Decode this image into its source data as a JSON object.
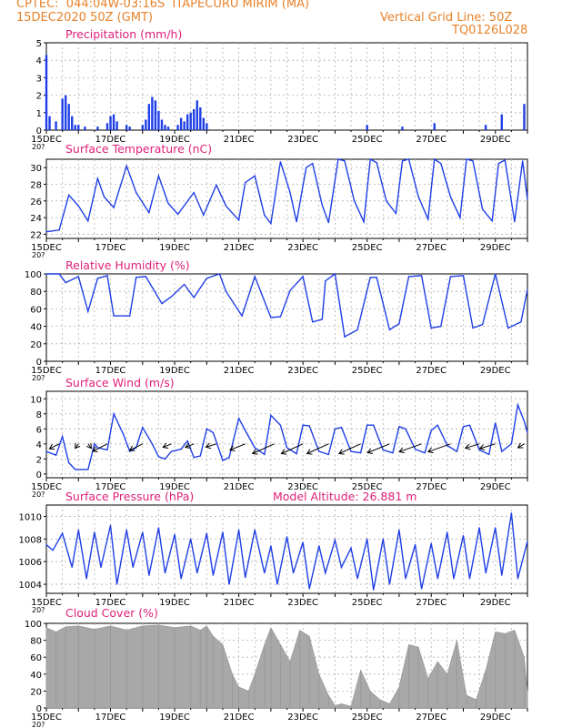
{
  "header": {
    "line1": "CPTEC:  044:04W-03:16S  ITAPECURU MIRIM (MA)",
    "line2": "15DEC2020 50Z (GMT)",
    "grid_note": "Vertical Grid Line: 50Z",
    "code": "TQ0126L028"
  },
  "x_axis": {
    "day_ticks": [
      "15DEC",
      "17DEC",
      "19DEC",
      "21DEC",
      "23DEC",
      "25DEC",
      "27DEC",
      "29DEC"
    ],
    "year_fragment": "20?"
  },
  "colors": {
    "line": "#1f3fe6",
    "bar": "#1f3fe6",
    "cloud": "#a8a8a8",
    "title": "#e0207a",
    "header": "#e8822a",
    "grid": "#b0b0b0"
  },
  "chart_data": [
    {
      "type": "bar",
      "title": "Precipitation (mm/h)",
      "x_unit": "day offset from 15DEC 00Z",
      "ylim": [
        0,
        5
      ],
      "yticks": [
        "0",
        "1",
        "2",
        "3",
        "4",
        "5"
      ],
      "x": [
        0.0,
        0.1,
        0.3,
        0.5,
        0.6,
        0.7,
        0.8,
        0.9,
        1.0,
        1.2,
        1.6,
        1.9,
        2.0,
        2.1,
        2.2,
        2.5,
        2.6,
        3.0,
        3.1,
        3.2,
        3.3,
        3.4,
        3.5,
        3.6,
        3.7,
        3.8,
        4.1,
        4.2,
        4.3,
        4.4,
        4.5,
        4.6,
        4.7,
        4.8,
        4.9,
        5.0,
        10.0,
        11.1,
        12.1,
        13.7,
        14.2,
        14.9
      ],
      "values": [
        4.3,
        0.8,
        0.5,
        1.8,
        2.0,
        1.5,
        0.8,
        0.3,
        0.3,
        0.2,
        0.2,
        0.4,
        0.8,
        0.9,
        0.5,
        0.3,
        0.2,
        0.3,
        0.6,
        1.5,
        1.9,
        1.7,
        1.1,
        0.6,
        0.3,
        0.2,
        0.3,
        0.7,
        0.5,
        0.9,
        1.0,
        1.2,
        1.7,
        1.3,
        0.7,
        0.4,
        0.3,
        0.2,
        0.4,
        0.3,
        0.9,
        1.5
      ]
    },
    {
      "type": "line",
      "title": "Surface Temperature (nC)",
      "ylim": [
        21.5,
        31
      ],
      "yticks": [
        "22",
        "24",
        "26",
        "28",
        "30"
      ],
      "x": [
        0.0,
        0.4,
        0.7,
        1.0,
        1.3,
        1.6,
        1.8,
        2.1,
        2.5,
        2.8,
        3.2,
        3.5,
        3.8,
        4.1,
        4.6,
        4.9,
        5.3,
        5.6,
        6.0,
        6.2,
        6.5,
        6.8,
        7.0,
        7.3,
        7.6,
        7.8,
        8.1,
        8.3,
        8.6,
        8.8,
        9.1,
        9.3,
        9.6,
        9.9,
        10.1,
        10.3,
        10.6,
        10.9,
        11.1,
        11.3,
        11.6,
        11.9,
        12.1,
        12.3,
        12.6,
        12.9,
        13.1,
        13.3,
        13.6,
        13.9,
        14.1,
        14.3,
        14.6,
        14.85,
        15.0
      ],
      "values": [
        22.3,
        22.5,
        26.7,
        25.4,
        23.6,
        28.7,
        26.5,
        25.2,
        30.2,
        27.0,
        24.6,
        29.0,
        25.7,
        24.4,
        27.0,
        24.3,
        27.9,
        25.4,
        23.7,
        28.2,
        29.0,
        24.3,
        23.3,
        30.7,
        27.0,
        23.5,
        30.0,
        30.5,
        25.5,
        23.4,
        31.0,
        30.8,
        26.0,
        23.5,
        31.0,
        30.6,
        26.0,
        24.5,
        30.8,
        31.0,
        26.5,
        23.8,
        31.0,
        30.5,
        26.5,
        24.0,
        31.0,
        30.8,
        25.0,
        23.6,
        30.5,
        30.9,
        23.5,
        30.8,
        26.2
      ]
    },
    {
      "type": "line",
      "title": "Relative Humidity (%)",
      "ylim": [
        0,
        100
      ],
      "yticks": [
        "0",
        "20",
        "40",
        "60",
        "80",
        "100"
      ],
      "x": [
        0.0,
        0.4,
        0.6,
        1.0,
        1.3,
        1.6,
        1.9,
        2.1,
        2.6,
        2.8,
        3.1,
        3.6,
        3.9,
        4.3,
        4.6,
        5.0,
        5.4,
        5.6,
        6.1,
        6.5,
        7.0,
        7.3,
        7.6,
        8.0,
        8.3,
        8.6,
        8.7,
        9.0,
        9.3,
        9.7,
        10.1,
        10.3,
        10.7,
        11.0,
        11.3,
        11.7,
        12.0,
        12.3,
        12.6,
        13.0,
        13.3,
        13.6,
        14.0,
        14.4,
        14.8,
        15.0
      ],
      "values": [
        100,
        100,
        90,
        97,
        57,
        95,
        98,
        52,
        52,
        96,
        97,
        66,
        74,
        88,
        73,
        95,
        100,
        80,
        52,
        97,
        50,
        51,
        81,
        97,
        45,
        48,
        92,
        100,
        28,
        36,
        96,
        96,
        36,
        43,
        97,
        98,
        38,
        40,
        97,
        98,
        38,
        42,
        100,
        38,
        45,
        82
      ]
    },
    {
      "type": "line",
      "title": "Surface Wind (m/s)",
      "ylim": [
        -0.5,
        11
      ],
      "yticks": [
        "0",
        "2",
        "4",
        "6",
        "8",
        "10"
      ],
      "x": [
        0.0,
        0.3,
        0.5,
        0.7,
        0.9,
        1.1,
        1.3,
        1.5,
        1.6,
        1.9,
        2.1,
        2.4,
        2.6,
        2.8,
        3.0,
        3.3,
        3.5,
        3.7,
        3.9,
        4.2,
        4.4,
        4.6,
        4.8,
        5.0,
        5.2,
        5.5,
        5.7,
        6.0,
        6.2,
        6.5,
        6.8,
        7.0,
        7.3,
        7.5,
        7.8,
        8.0,
        8.2,
        8.5,
        8.8,
        9.0,
        9.2,
        9.5,
        9.8,
        10.0,
        10.2,
        10.5,
        10.8,
        11.0,
        11.2,
        11.5,
        11.8,
        12.0,
        12.2,
        12.5,
        12.8,
        13.0,
        13.2,
        13.5,
        13.8,
        14.0,
        14.2,
        14.5,
        14.7,
        14.9,
        15.0
      ],
      "values": [
        3.0,
        2.5,
        5.0,
        1.5,
        0.6,
        0.6,
        0.6,
        4.0,
        3.5,
        3.2,
        8.0,
        5.3,
        3.0,
        3.5,
        6.2,
        4.0,
        2.3,
        2.0,
        3.0,
        3.3,
        4.4,
        2.2,
        2.4,
        6.0,
        5.5,
        1.8,
        2.2,
        7.4,
        5.8,
        3.5,
        2.6,
        7.8,
        6.5,
        3.5,
        2.7,
        6.5,
        6.4,
        3.0,
        2.6,
        6.0,
        6.2,
        3.0,
        2.8,
        6.5,
        6.5,
        3.2,
        2.8,
        6.3,
        6.0,
        3.3,
        2.8,
        5.8,
        6.5,
        3.8,
        3.0,
        6.3,
        6.5,
        3.2,
        2.6,
        6.8,
        3.0,
        4.0,
        9.2,
        7.0,
        5.5
      ],
      "arrows": [
        {
          "x": 0.4,
          "u": 1,
          "v": 0.5,
          "len": 12
        },
        {
          "x": 1.0,
          "u": 0.6,
          "v": 0.8,
          "len": 6
        },
        {
          "x": 1.3,
          "u": -0.6,
          "v": 0.8,
          "len": 6
        },
        {
          "x": 1.9,
          "u": 1,
          "v": 0.5,
          "len": 18
        },
        {
          "x": 3.0,
          "u": 1,
          "v": 0.5,
          "len": 16
        },
        {
          "x": 3.9,
          "u": 1,
          "v": 0.4,
          "len": 10
        },
        {
          "x": 4.6,
          "u": 1,
          "v": 0.4,
          "len": 10
        },
        {
          "x": 5.3,
          "u": 1,
          "v": 0.3,
          "len": 12
        },
        {
          "x": 6.2,
          "u": 1,
          "v": 0.4,
          "len": 18
        },
        {
          "x": 7.1,
          "u": 1,
          "v": 0.45,
          "len": 26
        },
        {
          "x": 8.0,
          "u": 1,
          "v": 0.45,
          "len": 26
        },
        {
          "x": 8.8,
          "u": 1,
          "v": 0.45,
          "len": 26
        },
        {
          "x": 9.8,
          "u": 1,
          "v": 0.45,
          "len": 26
        },
        {
          "x": 10.7,
          "u": 1,
          "v": 0.4,
          "len": 26
        },
        {
          "x": 11.7,
          "u": 1,
          "v": 0.35,
          "len": 26
        },
        {
          "x": 12.6,
          "u": 1,
          "v": 0.35,
          "len": 26
        },
        {
          "x": 13.5,
          "u": 1,
          "v": 0.3,
          "len": 16
        },
        {
          "x": 14.0,
          "u": 1,
          "v": 0.3,
          "len": 18
        },
        {
          "x": 14.9,
          "u": 1,
          "v": 0.6,
          "len": 8
        }
      ]
    },
    {
      "type": "line",
      "title": "Surface Pressure (hPa)",
      "annotation": "Model Altitude: 26.881 m",
      "ylim": [
        1003.2,
        1011
      ],
      "yticks": [
        "1004",
        "1006",
        "1008",
        "1010"
      ],
      "x": [
        0.0,
        0.2,
        0.5,
        0.8,
        1.0,
        1.25,
        1.5,
        1.7,
        2.0,
        2.2,
        2.5,
        2.7,
        3.0,
        3.2,
        3.5,
        3.7,
        4.0,
        4.2,
        4.5,
        4.7,
        5.0,
        5.2,
        5.5,
        5.7,
        6.0,
        6.2,
        6.5,
        6.8,
        7.0,
        7.2,
        7.5,
        7.7,
        8.0,
        8.2,
        8.5,
        8.7,
        9.0,
        9.2,
        9.5,
        9.7,
        10.0,
        10.2,
        10.5,
        10.7,
        11.0,
        11.2,
        11.5,
        11.7,
        12.0,
        12.2,
        12.5,
        12.7,
        13.0,
        13.2,
        13.5,
        13.7,
        14.0,
        14.2,
        14.5,
        14.7,
        15.0
      ],
      "values": [
        1007.5,
        1007.0,
        1008.5,
        1005.5,
        1008.8,
        1004.5,
        1008.6,
        1005.5,
        1009.2,
        1004.0,
        1008.8,
        1005.5,
        1008.6,
        1004.8,
        1009.0,
        1005.0,
        1008.4,
        1004.5,
        1008.0,
        1005.0,
        1008.5,
        1004.8,
        1008.6,
        1004.0,
        1008.8,
        1004.6,
        1008.8,
        1005.0,
        1007.4,
        1004.0,
        1008.2,
        1005.0,
        1007.7,
        1003.6,
        1007.4,
        1005.0,
        1007.9,
        1005.5,
        1007.2,
        1004.5,
        1008.0,
        1003.5,
        1008.0,
        1004.0,
        1008.8,
        1004.5,
        1007.5,
        1003.6,
        1007.6,
        1004.5,
        1008.6,
        1004.5,
        1008.3,
        1004.5,
        1009.0,
        1005.0,
        1009.0,
        1004.8,
        1010.3,
        1004.5,
        1007.8
      ]
    },
    {
      "type": "area",
      "title": "Cloud Cover (%)",
      "ylim": [
        0,
        100
      ],
      "yticks": [
        "0",
        "20",
        "40",
        "60",
        "80",
        "100"
      ],
      "x": [
        0.0,
        0.3,
        0.6,
        1.0,
        1.5,
        2.0,
        2.5,
        3.0,
        3.5,
        4.0,
        4.5,
        4.8,
        5.0,
        5.2,
        5.5,
        5.8,
        6.0,
        6.3,
        6.5,
        6.8,
        7.0,
        7.3,
        7.6,
        7.9,
        8.2,
        8.5,
        8.8,
        9.0,
        9.2,
        9.5,
        9.8,
        10.1,
        10.4,
        10.7,
        11.0,
        11.3,
        11.6,
        11.9,
        12.2,
        12.5,
        12.8,
        13.1,
        13.4,
        13.7,
        14.0,
        14.3,
        14.6,
        14.9,
        15.0
      ],
      "values": [
        95,
        90,
        96,
        97,
        93,
        97,
        92,
        97,
        98,
        95,
        97,
        92,
        97,
        85,
        75,
        40,
        25,
        20,
        40,
        75,
        95,
        75,
        55,
        92,
        85,
        40,
        15,
        3,
        5,
        2,
        45,
        20,
        10,
        5,
        25,
        75,
        72,
        35,
        55,
        40,
        80,
        15,
        10,
        45,
        90,
        88,
        92,
        60,
        20
      ]
    }
  ]
}
